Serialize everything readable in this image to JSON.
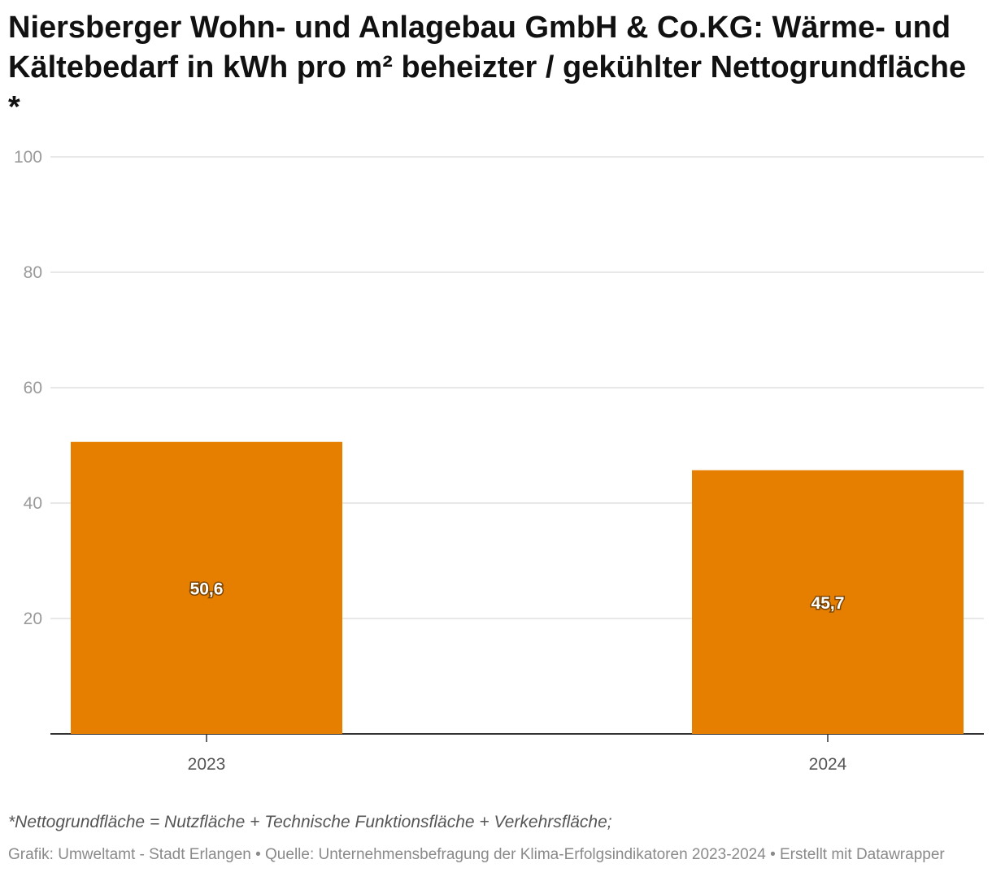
{
  "title": "Niersberger Wohn- und Anlagebau GmbH & Co.KG: Wärme- und Kältebedarf in kWh pro m² beheizter / gekühlter Nettogrundfläche *",
  "note": "*Nettogrundfläche = Nutzfläche + Technische Funktionsfläche + Verkehrsfläche;",
  "credit": "Grafik: Umweltamt - Stadt Erlangen  • Quelle: Unternehmensbefragung der Klima-Erfolgsindikatoren 2023-2024 • Erstellt mit Datawrapper",
  "colors": {
    "bar": "#e67e00",
    "grid": "#e0e0e0",
    "axis": "#333333"
  },
  "chart_data": {
    "type": "bar",
    "categories": [
      "2023",
      "2024"
    ],
    "values": [
      50.6,
      45.7
    ],
    "value_labels": [
      "50,6",
      "45,7"
    ],
    "yticks": [
      20,
      40,
      60,
      80,
      100
    ],
    "ylim": [
      0,
      100
    ],
    "grid": true,
    "legend": "none"
  }
}
